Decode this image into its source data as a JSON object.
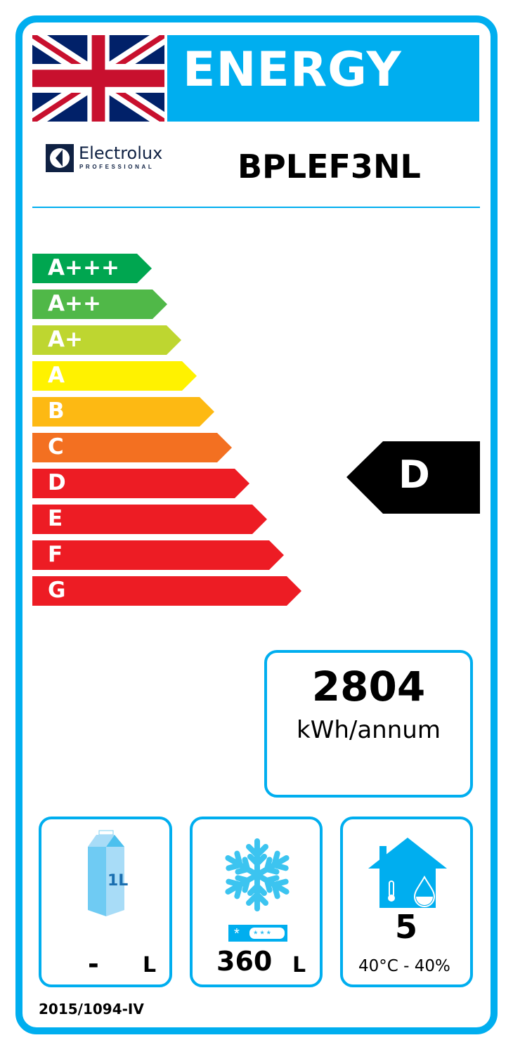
{
  "header": {
    "title": "ENERGY",
    "flag": "union-jack-flag"
  },
  "brand": {
    "name": "Electrolux",
    "sub": "PROFESSIONAL"
  },
  "model": "BPLEF3NL",
  "scale": [
    {
      "label": "A+++",
      "color": "#00a650"
    },
    {
      "label": "A++",
      "color": "#50b848"
    },
    {
      "label": "A+",
      "color": "#bed630"
    },
    {
      "label": "A",
      "color": "#fff200"
    },
    {
      "label": "B",
      "color": "#fdb913"
    },
    {
      "label": "C",
      "color": "#f37021"
    },
    {
      "label": "D",
      "color": "#ed1c24"
    },
    {
      "label": "E",
      "color": "#ed1c24"
    },
    {
      "label": "F",
      "color": "#ed1c24"
    },
    {
      "label": "G",
      "color": "#ed1c24"
    }
  ],
  "rating": "D",
  "consumption": {
    "value": "2804",
    "unit": "kWh/annum"
  },
  "chilled": {
    "value": "-",
    "unit": "L",
    "icon": "milk-carton-icon",
    "icon_text": "1L"
  },
  "frozen": {
    "value": "360",
    "unit": "L",
    "icon": "snowflake-icon"
  },
  "climate": {
    "value": "5",
    "conditions": "40°C - 40%",
    "icon": "house-climate-icon"
  },
  "regulation": "2015/1094-IV",
  "accent": "#00aeef"
}
